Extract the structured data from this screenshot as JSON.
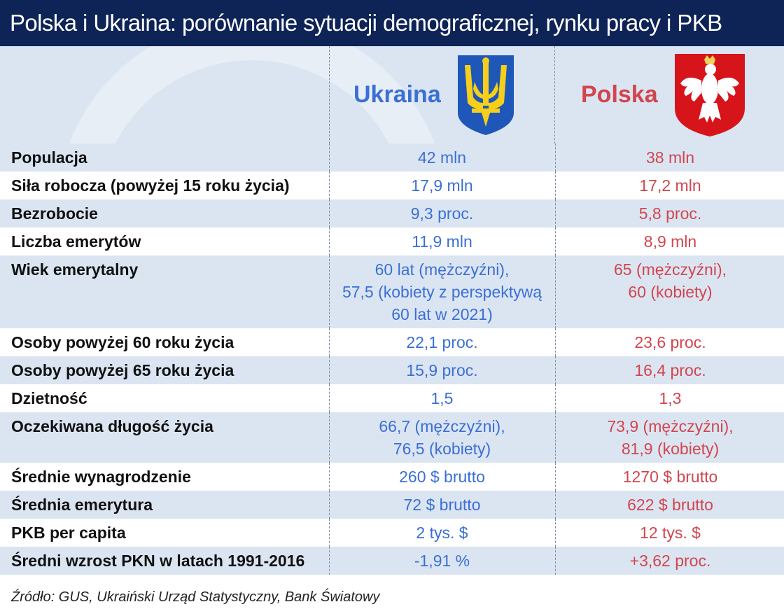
{
  "title": "Polska i Ukraina: porównanie sytuacji demograficznej, rynku pracy i PKB",
  "countries": {
    "ukraine": {
      "name": "Ukraina",
      "emblem_icon": "ukraine-trident-emblem",
      "color": "#3b6fd6"
    },
    "poland": {
      "name": "Polska",
      "emblem_icon": "poland-eagle-emblem",
      "color": "#d2454e"
    }
  },
  "rows": [
    {
      "label": "Populacja",
      "ua": [
        "42 mln"
      ],
      "pl": [
        "38 mln"
      ]
    },
    {
      "label": "Siła robocza (powyżej 15 roku życia)",
      "ua": [
        "17,9 mln"
      ],
      "pl": [
        "17,2 mln"
      ]
    },
    {
      "label": "Bezrobocie",
      "ua": [
        "9,3 proc."
      ],
      "pl": [
        "5,8 proc."
      ]
    },
    {
      "label": "Liczba emerytów",
      "ua": [
        "11,9 mln"
      ],
      "pl": [
        "8,9 mln"
      ]
    },
    {
      "label": "Wiek emerytalny",
      "ua": [
        "60 lat (mężczyźni),",
        "57,5 (kobiety z perspektywą",
        "60 lat w 2021)"
      ],
      "pl": [
        "65 (mężczyźni),",
        "60 (kobiety)"
      ]
    },
    {
      "label": "Osoby powyżej 60 roku życia",
      "ua": [
        "22,1 proc."
      ],
      "pl": [
        "23,6 proc."
      ]
    },
    {
      "label": "Osoby powyżej 65 roku życia",
      "ua": [
        "15,9 proc."
      ],
      "pl": [
        "16,4 proc."
      ]
    },
    {
      "label": "Dzietność",
      "ua": [
        "1,5"
      ],
      "pl": [
        "1,3"
      ]
    },
    {
      "label": "Oczekiwana długość życia",
      "ua": [
        "66,7 (mężczyźni),",
        "76,5 (kobiety)"
      ],
      "pl": [
        "73,9 (mężczyźni),",
        "81,9 (kobiety)"
      ]
    },
    {
      "label": "Średnie wynagrodzenie",
      "ua": [
        "260 $ brutto"
      ],
      "pl": [
        "1270 $ brutto"
      ]
    },
    {
      "label": "Średnia emerytura",
      "ua": [
        "72 $ brutto"
      ],
      "pl": [
        "622 $ brutto"
      ]
    },
    {
      "label": "PKB per capita",
      "ua": [
        "2 tys. $"
      ],
      "pl": [
        "12 tys. $"
      ]
    },
    {
      "label": "Średni wzrost PKN w latach 1991-2016",
      "ua": [
        "-1,91 %"
      ],
      "pl": [
        "+3,62 proc."
      ]
    }
  ],
  "source": "Źródło: GUS, Ukraiński Urząd Statystyczny, Bank Światowy"
}
